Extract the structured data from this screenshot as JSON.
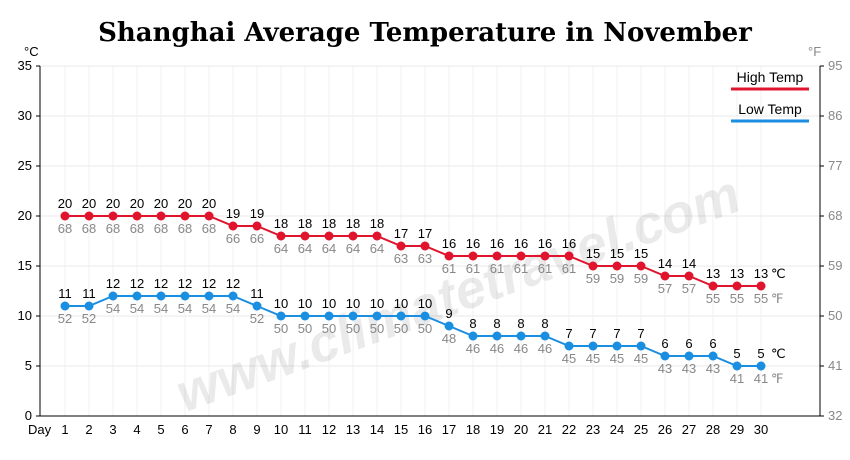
{
  "chart_data": {
    "type": "line",
    "title": "Shanghai Average Temperature in November",
    "y_left_unit": "°C",
    "y_right_unit": "°F",
    "x_axis_label": "Day",
    "ylim_c": [
      0,
      35
    ],
    "y_ticks_c": [
      0,
      5,
      10,
      15,
      20,
      25,
      30,
      35
    ],
    "y_ticks_f": [
      32,
      41,
      50,
      59,
      68,
      77,
      86,
      95
    ],
    "x": [
      1,
      2,
      3,
      4,
      5,
      6,
      7,
      8,
      9,
      10,
      11,
      12,
      13,
      14,
      15,
      16,
      17,
      18,
      19,
      20,
      21,
      22,
      23,
      24,
      25,
      26,
      27,
      28,
      29,
      30
    ],
    "series": [
      {
        "name": "High Temp",
        "color": "#e0142c",
        "values_c": [
          20,
          20,
          20,
          20,
          20,
          20,
          20,
          19,
          19,
          18,
          18,
          18,
          18,
          18,
          17,
          17,
          16,
          16,
          16,
          16,
          16,
          16,
          15,
          15,
          15,
          14,
          14,
          13,
          13,
          13
        ],
        "values_f": [
          68,
          68,
          68,
          68,
          68,
          68,
          68,
          66,
          66,
          64,
          64,
          64,
          64,
          64,
          63,
          63,
          61,
          61,
          61,
          61,
          61,
          61,
          59,
          59,
          59,
          57,
          57,
          55,
          55,
          55
        ]
      },
      {
        "name": "Low Temp",
        "color": "#1a8ee0",
        "values_c": [
          11,
          11,
          12,
          12,
          12,
          12,
          12,
          12,
          11,
          10,
          10,
          10,
          10,
          10,
          10,
          10,
          9,
          8,
          8,
          8,
          8,
          7,
          7,
          7,
          7,
          6,
          6,
          6,
          5,
          5
        ],
        "values_f": [
          52,
          52,
          54,
          54,
          54,
          54,
          54,
          54,
          52,
          50,
          50,
          50,
          50,
          50,
          50,
          50,
          48,
          46,
          46,
          46,
          46,
          45,
          45,
          45,
          45,
          43,
          43,
          43,
          41,
          41
        ]
      }
    ],
    "end_unit_c": "℃",
    "end_unit_f": "℉",
    "grid": true,
    "legend_position": "top-right",
    "watermark": "www.climatetravel.com"
  }
}
